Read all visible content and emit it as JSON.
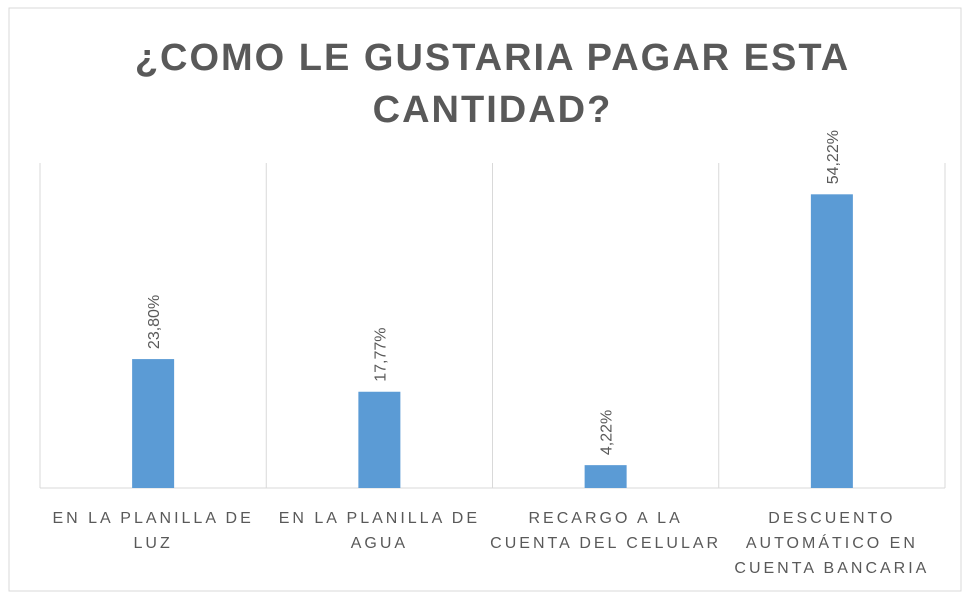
{
  "chart_data": {
    "type": "bar",
    "title": "¿COMO LE GUSTARIA PAGAR ESTA CANTIDAD?",
    "categories": [
      "EN LA PLANILLA DE LUZ",
      "EN LA PLANILLA DE AGUA",
      "RECARGO A LA CUENTA DEL CELULAR",
      "DESCUENTO AUTOMÁTICO EN CUENTA BANCARIA"
    ],
    "values": [
      23.8,
      17.77,
      4.22,
      54.22
    ],
    "value_labels": [
      "23,80%",
      "17,77%",
      "4,22%",
      "54,22%"
    ],
    "color": "#5b9bd5",
    "ylim": [
      0,
      60
    ]
  }
}
